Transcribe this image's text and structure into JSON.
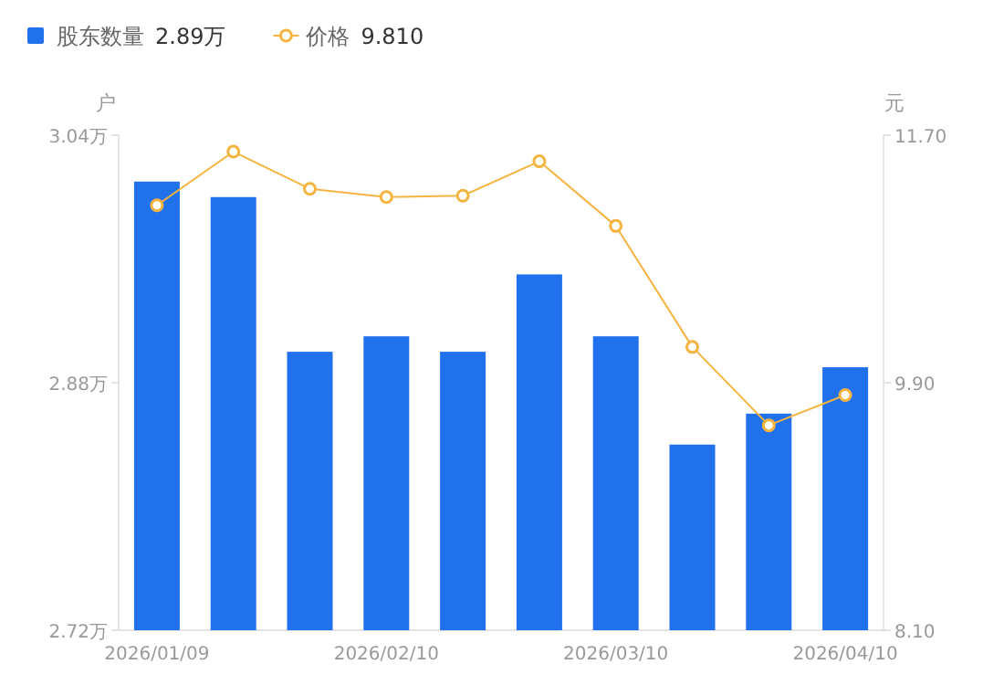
{
  "chart_data": {
    "type": "bar",
    "categories": [
      "2026/01/09",
      null,
      null,
      "2026/02/10",
      null,
      null,
      "2026/03/10",
      null,
      null,
      "2026/04/10"
    ],
    "ylabel": "户",
    "y2label": "元",
    "ylim": [
      2.72,
      3.04
    ],
    "yticks": [
      {
        "value": 2.72,
        "label": "2.72万"
      },
      {
        "value": 2.88,
        "label": "2.88万"
      },
      {
        "value": 3.04,
        "label": "3.04万"
      }
    ],
    "y2lim": [
      8.1,
      11.7
    ],
    "y2ticks": [
      {
        "value": 8.1,
        "label": "8.10"
      },
      {
        "value": 9.9,
        "label": "9.90"
      },
      {
        "value": 11.7,
        "label": "11.70"
      }
    ],
    "series": [
      {
        "name": "股东数量",
        "color": "#2171ec",
        "values": [
          3.01,
          3.0,
          2.9,
          2.91,
          2.9,
          2.95,
          2.91,
          2.84,
          2.86,
          2.89
        ]
      },
      {
        "name": "价格",
        "type": "line",
        "axis": "y2",
        "color": "#f5b440",
        "marker": "circle",
        "values": [
          11.19,
          11.58,
          11.31,
          11.25,
          11.26,
          11.51,
          11.04,
          10.16,
          9.59,
          9.81
        ]
      }
    ],
    "annotations": [
      "2.89万",
      "9.810"
    ],
    "legend": "top left",
    "grid": false
  }
}
